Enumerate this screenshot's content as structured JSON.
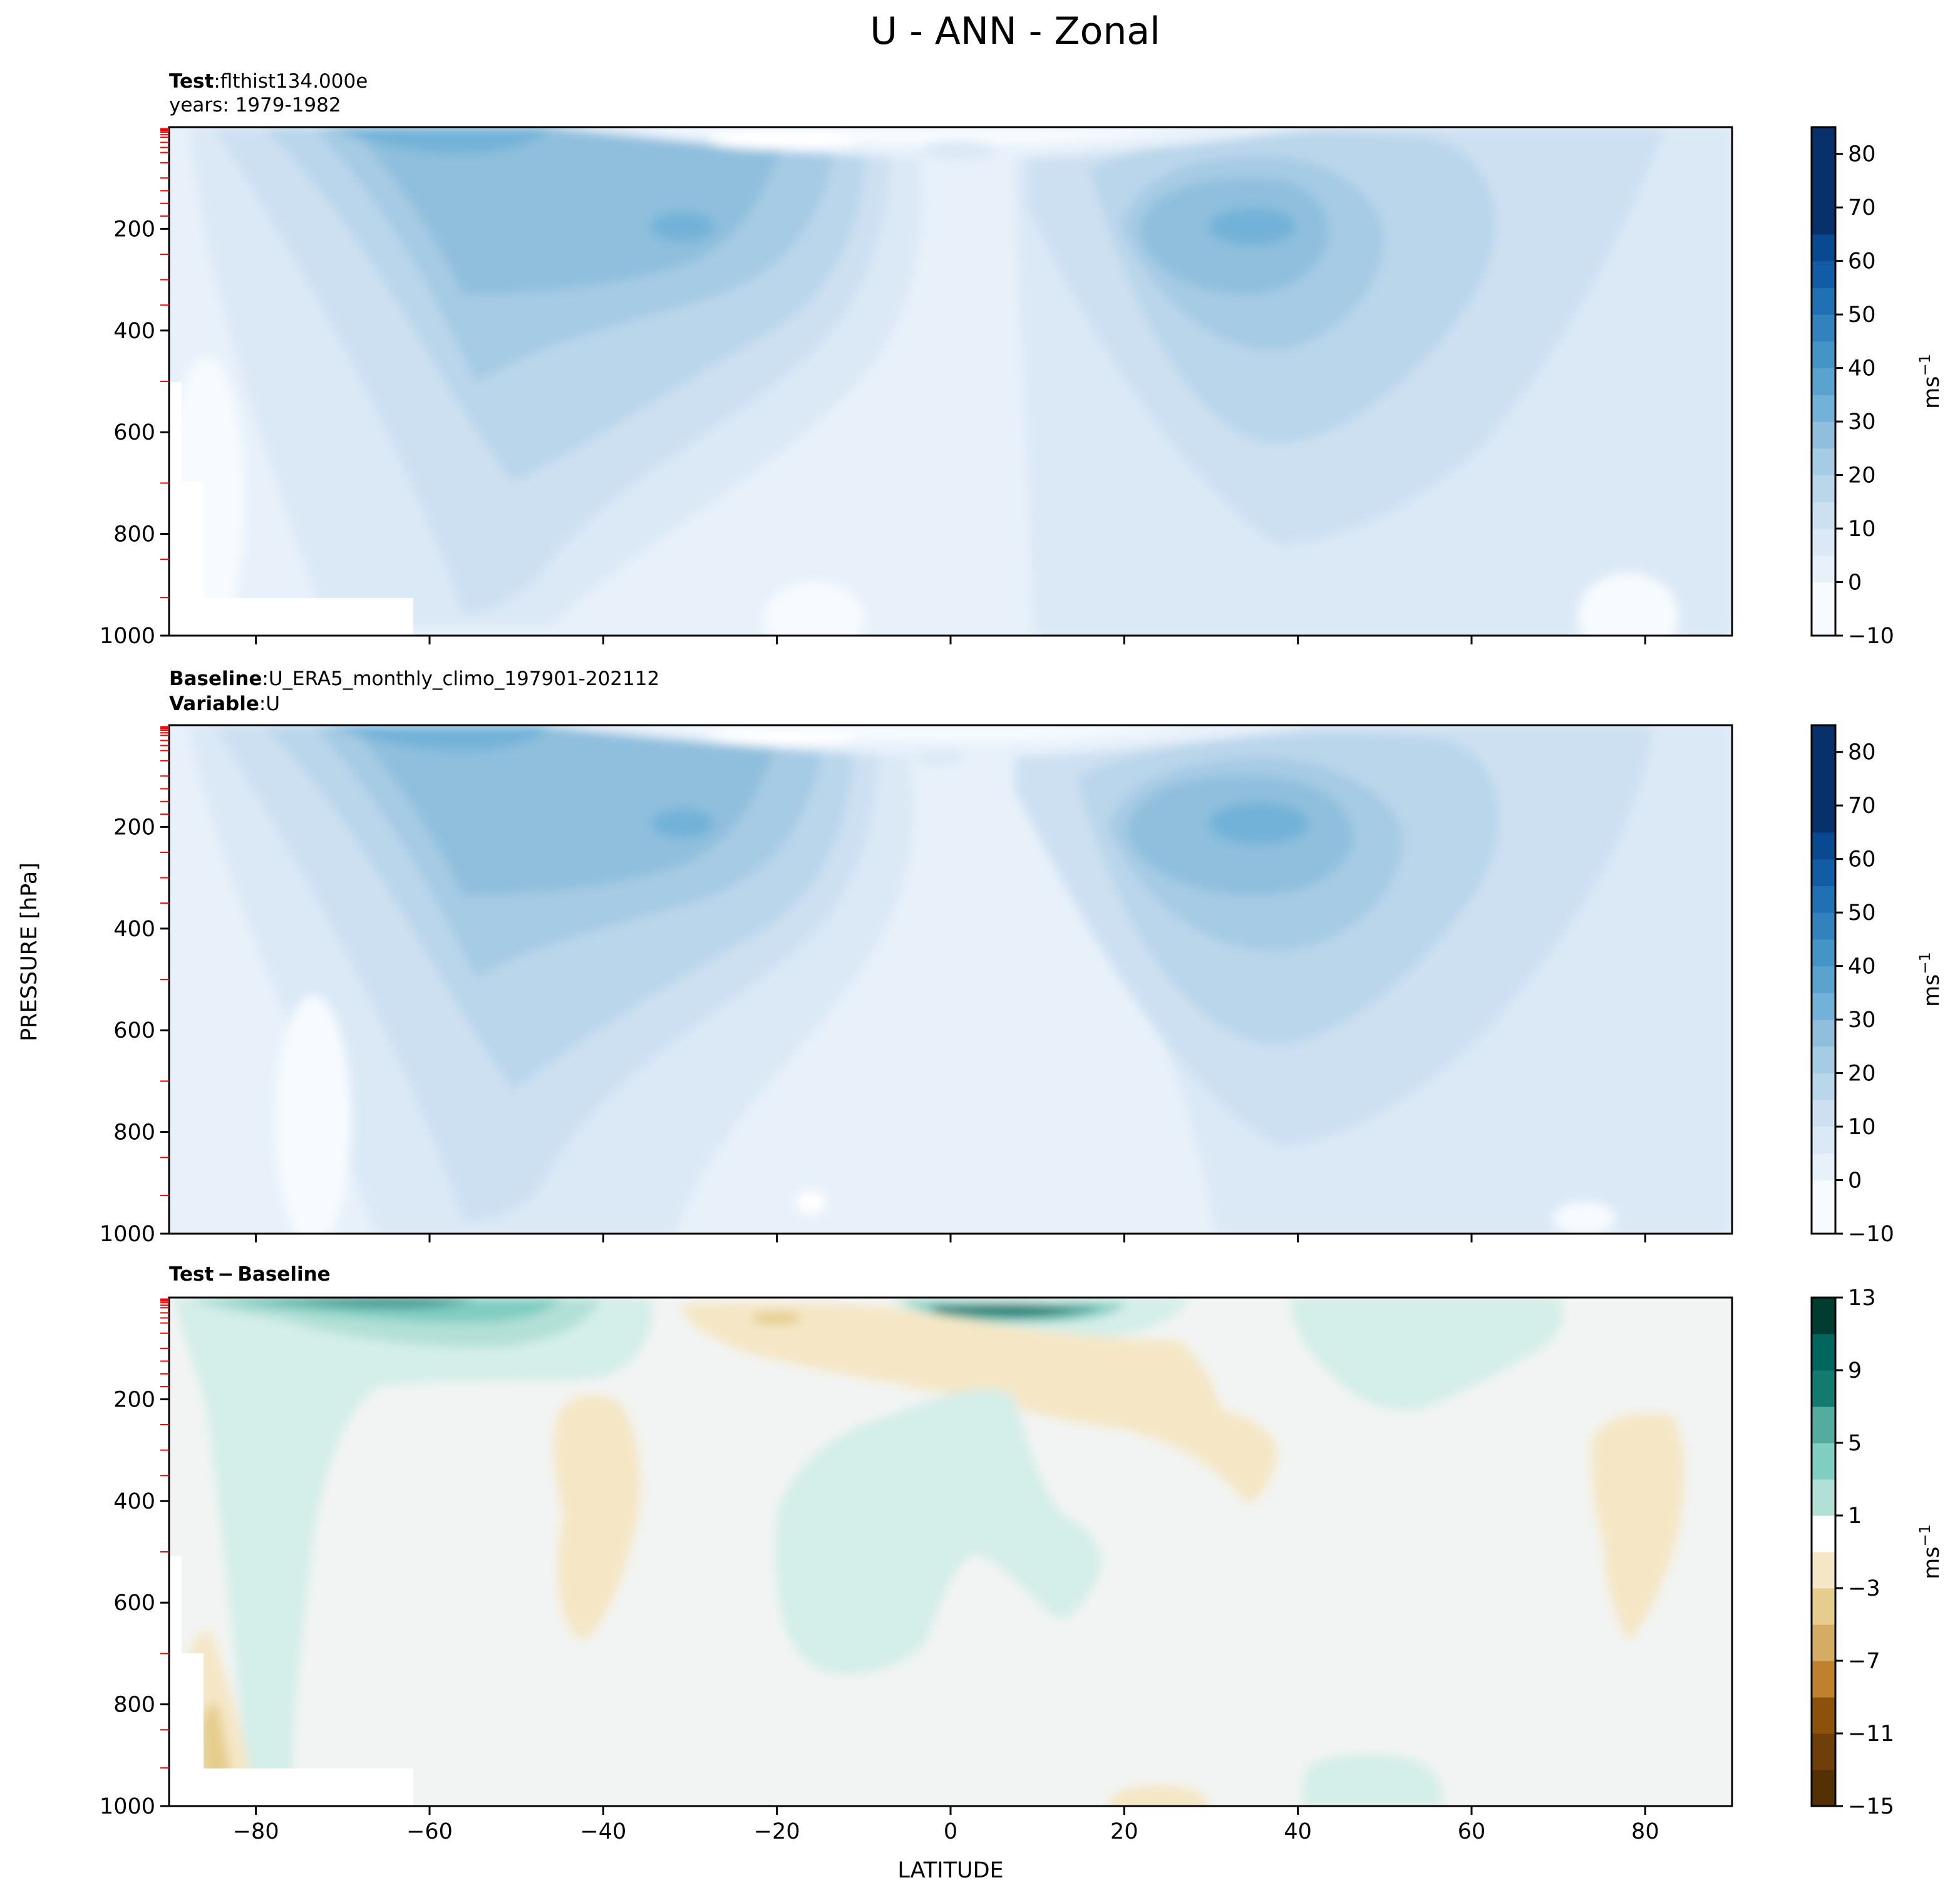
{
  "title": "U - ANN - Zonal",
  "colors": {
    "blues": [
      "#f7fbff",
      "#e8f1fa",
      "#dbe9f6",
      "#cde0f2",
      "#bad6eb",
      "#a6cbe4",
      "#8fbfdd",
      "#73b2d8",
      "#5ba3cf",
      "#4594c7",
      "#3282be",
      "#2070b4",
      "#115ca5",
      "#084990",
      "#08306b"
    ],
    "diverging": [
      "#543005",
      "#6e3f0a",
      "#8c510a",
      "#a9691b",
      "#bf812d",
      "#d6ac64",
      "#e6cd8e",
      "#f5e7c6",
      "#f5f5f5",
      "#d4eee9",
      "#b2e0d7",
      "#80cdc1",
      "#54ac9f",
      "#35978f",
      "#137a70",
      "#01665e",
      "#003c30"
    ],
    "tick_marker": "#ff0000"
  },
  "labels": {
    "test_bold": "Test",
    "test_value": "flthist134.000e",
    "test_years": "years: 1979-1982",
    "base_bold": "Baseline",
    "base_value": "U_ERA5_monthly_climo_197901-202112",
    "var_bold": "Variable",
    "var_value": "U",
    "diff_test": "Test",
    "diff_base": "Baseline",
    "colon": ":",
    "minus": "−",
    "ylabel": "PRESSURE [hPa]",
    "xlabel": "LATITUDE",
    "units": "ms",
    "units_exp": "−1"
  },
  "chart_data": [
    {
      "name": "Test",
      "type": "heatmap",
      "subtitle": "Test : flthist134.000e / years: 1979-1982",
      "x_ticks": [
        -80,
        -60,
        -40,
        -20,
        0,
        20,
        40,
        60,
        80
      ],
      "y_ticks": [
        200,
        400,
        600,
        800,
        1000
      ],
      "xlim": [
        -90,
        90
      ],
      "ylim": [
        1000,
        0
      ],
      "colorbar": {
        "levels": [
          -10,
          -5,
          0,
          5,
          10,
          15,
          20,
          25,
          30,
          35,
          40,
          45,
          50,
          55,
          60,
          65,
          70,
          75,
          80,
          85
        ],
        "tick_labels": [
          "−10",
          "0",
          "10",
          "20",
          "30",
          "40",
          "50",
          "60",
          "70",
          "80"
        ],
        "label": "ms−1"
      },
      "features": [
        {
          "desc": "southern hemisphere jet core",
          "lat": -31,
          "pressure": 200,
          "value": 40
        },
        {
          "desc": "northern hemisphere jet core",
          "lat": 36,
          "pressure": 200,
          "value": 35
        },
        {
          "desc": "southern stratospheric jet",
          "lat": -55,
          "pressure": 10,
          "value": 45
        }
      ]
    },
    {
      "name": "Baseline",
      "type": "heatmap",
      "subtitle": "Baseline : U_ERA5_monthly_climo_197901-202112 / Variable : U",
      "x_ticks": [
        -80,
        -60,
        -40,
        -20,
        0,
        20,
        40,
        60,
        80
      ],
      "y_ticks": [
        200,
        400,
        600,
        800,
        1000
      ],
      "xlim": [
        -90,
        90
      ],
      "ylim": [
        1000,
        0
      ],
      "colorbar": {
        "levels": [
          -10,
          -5,
          0,
          5,
          10,
          15,
          20,
          25,
          30,
          35,
          40,
          45,
          50,
          55,
          60,
          65,
          70,
          75,
          80,
          85
        ],
        "tick_labels": [
          "−10",
          "0",
          "10",
          "20",
          "30",
          "40",
          "50",
          "60",
          "70",
          "80"
        ],
        "label": "ms−1"
      },
      "features": [
        {
          "desc": "southern hemisphere jet core",
          "lat": -31,
          "pressure": 200,
          "value": 40
        },
        {
          "desc": "northern hemisphere jet core",
          "lat": 35,
          "pressure": 200,
          "value": 35
        },
        {
          "desc": "southern stratospheric jet",
          "lat": -55,
          "pressure": 10,
          "value": 45
        }
      ]
    },
    {
      "name": "Test − Baseline",
      "type": "heatmap",
      "subtitle": "Test − Baseline",
      "x_ticks": [
        -80,
        -60,
        -40,
        -20,
        0,
        20,
        40,
        60,
        80
      ],
      "y_ticks": [
        200,
        400,
        600,
        800,
        1000
      ],
      "xlim": [
        -90,
        90
      ],
      "ylim": [
        1000,
        0
      ],
      "colorbar": {
        "levels": [
          -15,
          -13,
          -11,
          -9,
          -7,
          -5,
          -3,
          -1,
          1,
          3,
          5,
          7,
          9,
          11,
          13
        ],
        "tick_labels": [
          "−15",
          "−11",
          "−7",
          "−3",
          "1",
          "5",
          "9",
          "13"
        ],
        "label": "ms−1"
      },
      "features": [
        {
          "desc": "positive difference near -60 top",
          "lat": -60,
          "pressure": 5,
          "value": 9
        },
        {
          "desc": "positive difference near 5 top",
          "lat": 5,
          "pressure": 20,
          "value": 9
        },
        {
          "desc": "negative patch near -40",
          "lat": -40,
          "pressure": 400,
          "value": -2
        },
        {
          "desc": "positive band -10..15",
          "lat": 0,
          "pressure": 450,
          "value": 2
        }
      ]
    }
  ]
}
